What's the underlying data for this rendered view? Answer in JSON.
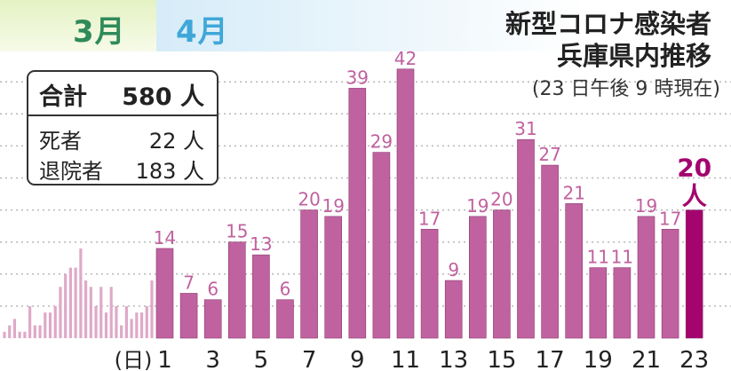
{
  "months": {
    "march": "3月",
    "april": "4月"
  },
  "title": {
    "line1": "新型コロナ感染者",
    "line2": "兵庫県内推移"
  },
  "subtitle": "(23 日午後 9 時現在)",
  "stats": {
    "total_label": "合計",
    "total_value": "580 人",
    "deaths_label": "死者",
    "deaths_value": "22 人",
    "discharged_label": "退院者",
    "discharged_value": "183 人"
  },
  "x_axis_prefix": "(日)",
  "highlight_unit": "人",
  "colors": {
    "bar": "#c0629f",
    "highlight": "#a3046e",
    "march_bar": "#dfa9c8",
    "label": "#c0629f",
    "grid": "#b7b7b7"
  },
  "chart_data": {
    "type": "bar",
    "ylim": [
      0,
      50
    ],
    "march": {
      "values": [
        1,
        2,
        3,
        1,
        1,
        5,
        2,
        2,
        4,
        4,
        5,
        8,
        10,
        11,
        11,
        14,
        9,
        8,
        5,
        8,
        4,
        8,
        5,
        2,
        5,
        3,
        4,
        4,
        5,
        9
      ]
    },
    "april": {
      "days": [
        1,
        2,
        3,
        4,
        5,
        6,
        7,
        8,
        9,
        10,
        11,
        12,
        13,
        14,
        15,
        16,
        17,
        18,
        19,
        20,
        21,
        22,
        23
      ],
      "values": [
        14,
        7,
        6,
        15,
        13,
        6,
        20,
        19,
        39,
        29,
        42,
        17,
        9,
        19,
        20,
        31,
        27,
        21,
        11,
        11,
        19,
        17,
        20
      ],
      "tick_labels": [
        "1",
        "3",
        "5",
        "7",
        "9",
        "11",
        "13",
        "15",
        "17",
        "19",
        "21",
        "23"
      ]
    }
  }
}
